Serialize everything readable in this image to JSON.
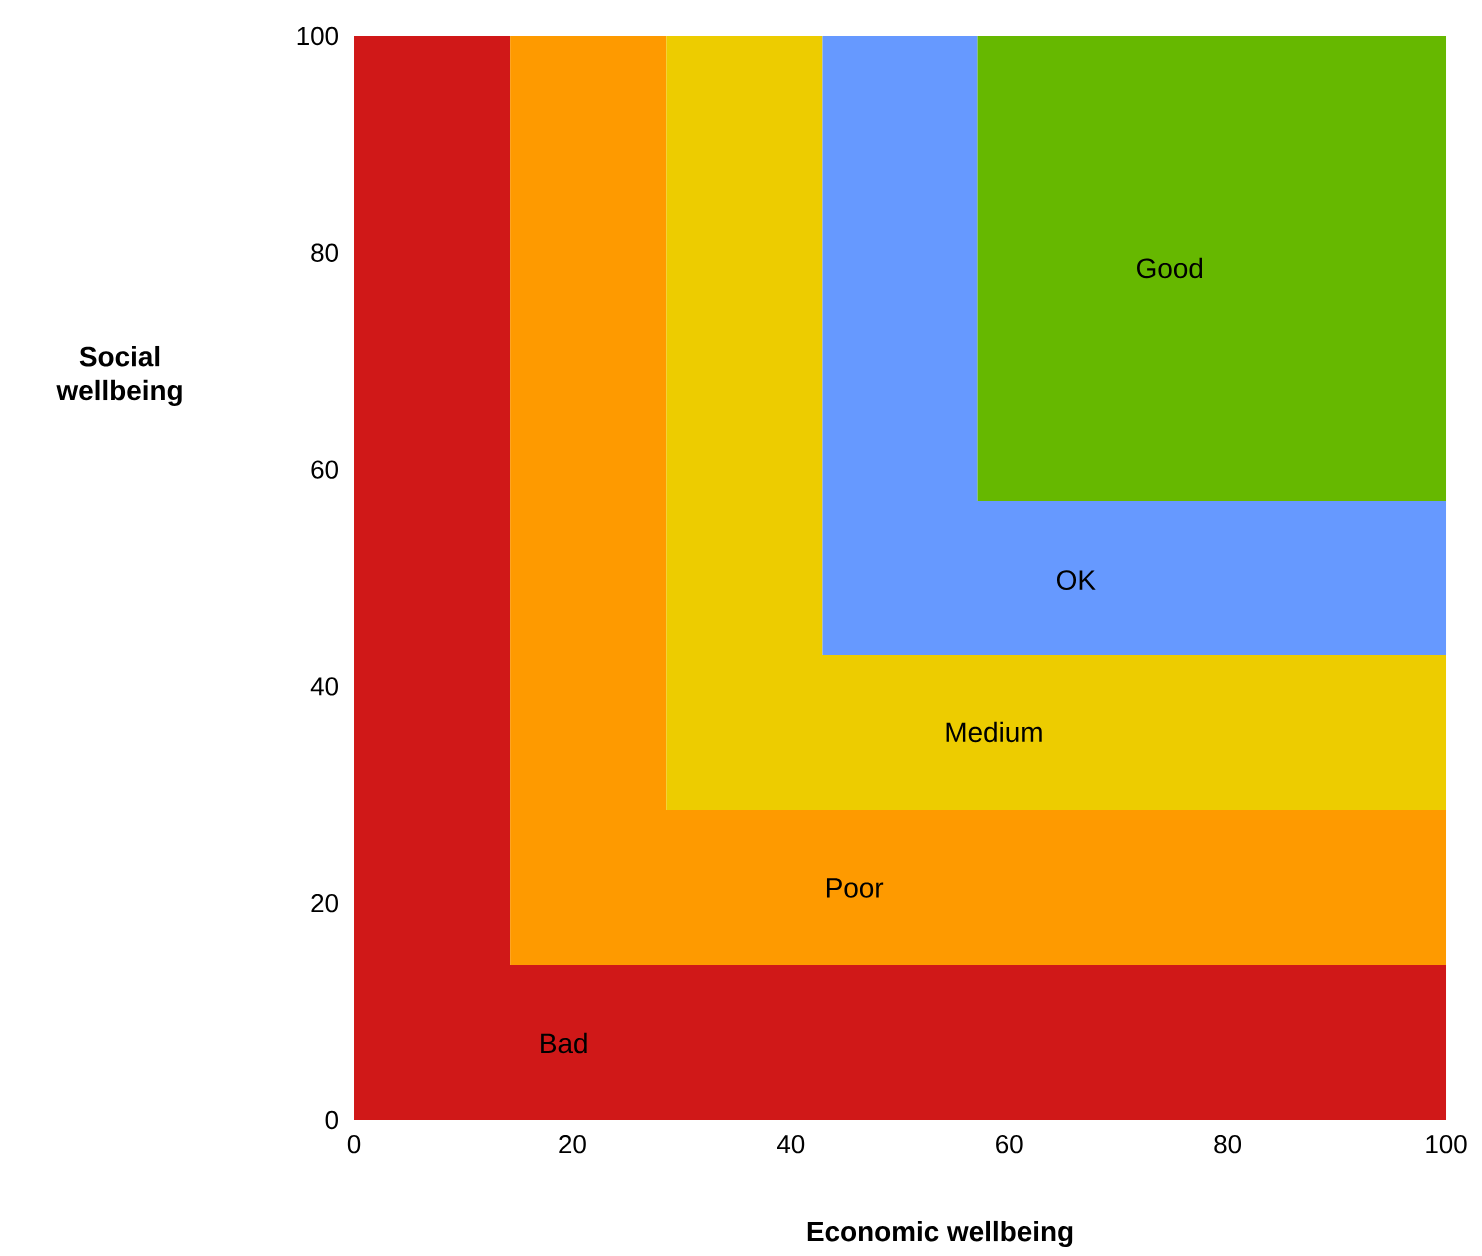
{
  "chart_data": {
    "type": "area",
    "stacked": true,
    "xlabel": "Economic wellbeing",
    "ylabel": "Social wellbeing",
    "xlim": [
      0,
      100
    ],
    "ylim": [
      0,
      100
    ],
    "xticks": [
      0,
      20,
      40,
      60,
      80,
      100
    ],
    "yticks": [
      0,
      20,
      40,
      60,
      80,
      100
    ],
    "x": [
      0,
      14.3,
      14.3,
      28.6,
      28.6,
      42.9,
      42.9,
      57.1,
      57.1,
      100
    ],
    "series": [
      {
        "color": "#d01818",
        "values": [
          100,
          100,
          14.3,
          14.3,
          14.3,
          14.3,
          14.3,
          14.3,
          14.3,
          14.3
        ]
      },
      {
        "color": "#fe9a00",
        "values": [
          0,
          0,
          85.7,
          85.7,
          14.3,
          14.3,
          14.3,
          14.3,
          14.3,
          14.3
        ]
      },
      {
        "color": "#edcc00",
        "values": [
          0,
          0,
          0,
          0,
          71.4,
          71.4,
          14.3,
          14.3,
          14.3,
          14.3
        ]
      },
      {
        "color": "#6699ff",
        "values": [
          0,
          0,
          0,
          0,
          0,
          0,
          57.1,
          57.1,
          14.2,
          14.2
        ]
      },
      {
        "color": "#66b800",
        "values": [
          0,
          0,
          0,
          0,
          0,
          0,
          0,
          0,
          42.9,
          42.9
        ]
      }
    ],
    "annotations": [
      "Bad",
      "Poor",
      "Medium",
      "OK",
      "Good"
    ]
  }
}
